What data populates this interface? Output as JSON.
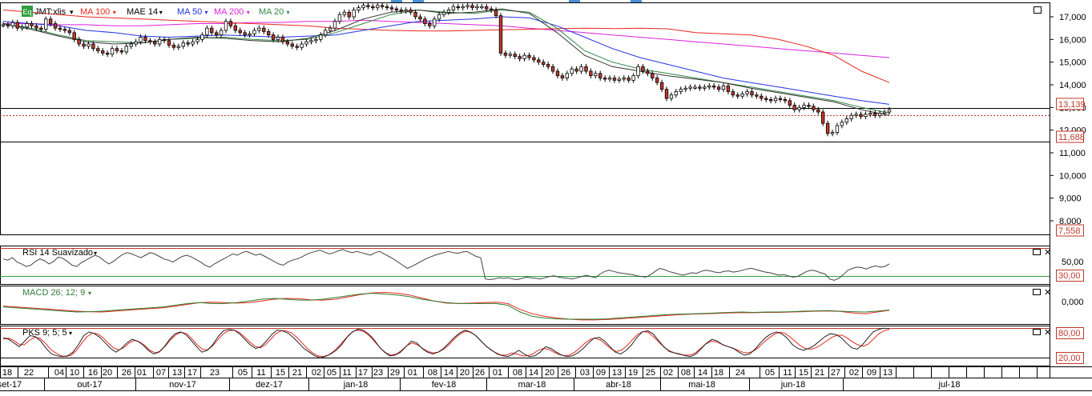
{
  "header": {
    "ticker_badge": "Eq",
    "ticker": "JMT:xlis",
    "indicators": [
      {
        "label": "MA 100",
        "color": "#e8281e"
      },
      {
        "label": "MAE 14",
        "color": "#000000"
      },
      {
        "label": "MA 50",
        "color": "#2233dd"
      },
      {
        "label": "MA 200",
        "color": "#dd22dd"
      },
      {
        "label": "MA 20",
        "color": "#338844"
      }
    ],
    "dropdown_glyph": "▾"
  },
  "price_axis": {
    "ticks": [
      "17,000",
      "16,000",
      "15,000",
      "14,000",
      "13,000",
      "12,000",
      "11,000",
      "10,000",
      "9,000",
      "8,000"
    ],
    "tick_values": [
      17000,
      16000,
      15000,
      14000,
      13000,
      12000,
      11000,
      10000,
      9000,
      8000
    ],
    "range": [
      7400,
      17600
    ],
    "badges": [
      {
        "text": "13,139",
        "value": 13139
      },
      {
        "text": "11,688",
        "value": 11688
      },
      {
        "text": "7,558",
        "value": 7558
      }
    ]
  },
  "rsi": {
    "label": "RSI 14 Suavizado",
    "ticks": [
      "50,00"
    ],
    "badge": "30,00",
    "color": "#444444"
  },
  "macd": {
    "label": "MACD 26; 12; 9",
    "ticks": [
      "0,000"
    ],
    "color_main": "#222222",
    "color_signal": "#e8281e"
  },
  "pks": {
    "label": "PKS 9; 5; 5",
    "badges": [
      "80,00",
      "20,00"
    ]
  },
  "time_axis": {
    "days": [
      "18",
      "22",
      "04",
      "10",
      "16",
      "20",
      "26",
      "01",
      "07",
      "13",
      "17",
      "23",
      "05",
      "11",
      "15",
      "21",
      "02",
      "05",
      "11",
      "17",
      "23",
      "29",
      "01",
      "08",
      "14",
      "20",
      "26",
      "01",
      "08",
      "14",
      "20",
      "26",
      "03",
      "09",
      "13",
      "19",
      "25",
      "02",
      "08",
      "14",
      "18",
      "24",
      "05",
      "11",
      "15",
      "21",
      "27",
      "02",
      "09",
      "13"
    ],
    "months": [
      "set-17",
      "out-17",
      "nov-17",
      "dez-17",
      "jan-18",
      "fev-18",
      "mar-18",
      "abr-18",
      "mai-18",
      "jun-18",
      "jul-18"
    ]
  },
  "chart_data": {
    "type": "candlestick",
    "ticker": "JMT:xlis",
    "y_range": [
      7400,
      17600
    ],
    "close": [
      16650,
      16600,
      16750,
      16500,
      16550,
      16700,
      16600,
      16500,
      16450,
      16900,
      16700,
      16500,
      16450,
      16400,
      16300,
      16000,
      15800,
      15700,
      15800,
      15600,
      15500,
      15400,
      15350,
      15600,
      15500,
      15450,
      15700,
      15800,
      15900,
      16100,
      15950,
      15900,
      15800,
      16000,
      15950,
      15750,
      15650,
      15700,
      15850,
      15800,
      15900,
      16000,
      16200,
      16500,
      16300,
      16200,
      16400,
      16800,
      16600,
      16400,
      16300,
      16200,
      16250,
      16400,
      16500,
      16350,
      16200,
      16000,
      16100,
      15900,
      15800,
      15700,
      15650,
      15800,
      15900,
      15950,
      16000,
      16200,
      16400,
      16500,
      16800,
      17100,
      17200,
      17000,
      17300,
      17400,
      17500,
      17450,
      17400,
      17500,
      17450,
      17400,
      17350,
      17300,
      17250,
      17300,
      17200,
      17000,
      16900,
      16700,
      16600,
      16900,
      17100,
      17200,
      17300,
      17450,
      17400,
      17450,
      17500,
      17400,
      17450,
      17450,
      17350,
      17300,
      17050,
      15400,
      15300,
      15350,
      15250,
      15150,
      15300,
      15200,
      15100,
      15000,
      14900,
      14800,
      14600,
      14400,
      14300,
      14500,
      14700,
      14600,
      14800,
      14600,
      14400,
      14500,
      14300,
      14250,
      14300,
      14200,
      14250,
      14300,
      14200,
      14400,
      14800,
      14600,
      14500,
      14300,
      14100,
      13800,
      13400,
      13550,
      13700,
      13800,
      13850,
      13900,
      13900,
      13850,
      13900,
      13950,
      13900,
      13800,
      13950,
      13700,
      13550,
      13500,
      13600,
      13700,
      13550,
      13500,
      13400,
      13350,
      13300,
      13400,
      13350,
      13300,
      13100,
      12900,
      13000,
      13100,
      13050,
      12900,
      12800,
      12300,
      11850,
      11900,
      12200,
      12350,
      12500,
      12650,
      12700,
      12600,
      12700,
      12750,
      12650,
      12750,
      12800,
      12900
    ],
    "ma100": [
      17300,
      17200,
      17100,
      17000,
      16950,
      16900,
      16850,
      16800,
      16750,
      16700,
      16650,
      16600,
      16500,
      16450,
      16400,
      16380,
      16370,
      16400,
      16430,
      16450,
      16480,
      16500,
      16480,
      16500,
      16470,
      16300,
      16250,
      16200,
      16000,
      15700,
      15300,
      14600,
      14100
    ],
    "ma200": [
      16700,
      16700,
      16650,
      16650,
      16600,
      16600,
      16650,
      16700,
      16700,
      16750,
      16750,
      16800,
      16800,
      16850,
      16800,
      16750,
      16700,
      16650,
      16600,
      16500,
      16400,
      16300,
      16200,
      16100,
      16000,
      15900,
      15800,
      15700,
      15600,
      15500,
      15400,
      15300,
      15200
    ],
    "ma50": [
      16800,
      16700,
      16600,
      16400,
      16300,
      16150,
      16100,
      16150,
      16200,
      16150,
      16100,
      16150,
      16200,
      16400,
      16600,
      16800,
      16850,
      16900,
      17000,
      16950,
      16600,
      16100,
      15600,
      15200,
      14900,
      14600,
      14300,
      14100,
      13900,
      13700,
      13500,
      13300,
      13139
    ],
    "ma20": [
      16700,
      16500,
      16200,
      15950,
      15900,
      15850,
      16000,
      16050,
      16100,
      16000,
      15950,
      16000,
      16300,
      16700,
      17100,
      17300,
      17200,
      17150,
      17300,
      17200,
      16500,
      15500,
      15000,
      14700,
      14500,
      14300,
      14100,
      13900,
      13700,
      13500,
      13300,
      13000,
      12750
    ],
    "mae14": [
      16700,
      16450,
      16150,
      15900,
      15800,
      15850,
      16000,
      16100,
      16050,
      15950,
      15900,
      16050,
      16400,
      16900,
      17200,
      17300,
      17150,
      17200,
      17350,
      17150,
      16300,
      15300,
      14800,
      14600,
      14400,
      14250,
      14100,
      13850,
      13650,
      13450,
      13250,
      12900,
      12650
    ],
    "rsi_range": [
      20,
      80
    ],
    "rsi": [
      60,
      58,
      62,
      55,
      52,
      48,
      50,
      56,
      60,
      57,
      52,
      56,
      63,
      61,
      56,
      50,
      48,
      54,
      58,
      62,
      66,
      63,
      57,
      52,
      56,
      62,
      67,
      70,
      68,
      65,
      62,
      66,
      70,
      68,
      64,
      60,
      58,
      55,
      60,
      64,
      66,
      63,
      59,
      55,
      50,
      47,
      52,
      56,
      60,
      64,
      68,
      66,
      70,
      72,
      69,
      66,
      68,
      64,
      60,
      56,
      52,
      50,
      55,
      58,
      60,
      63,
      67,
      70,
      72,
      74,
      71,
      68,
      70,
      73,
      75,
      72,
      70,
      72,
      70,
      68,
      66,
      70,
      72,
      68,
      64,
      60,
      55,
      50,
      45,
      48,
      52,
      56,
      60,
      63,
      66,
      68,
      70,
      72,
      70,
      69,
      71,
      72,
      68,
      64,
      62,
      28,
      27,
      28,
      30,
      29,
      30,
      28,
      27,
      29,
      31,
      30,
      29,
      28,
      30,
      32,
      33,
      31,
      30,
      29,
      28,
      30,
      32,
      34,
      32,
      30,
      36,
      40,
      42,
      40,
      38,
      37,
      36,
      35,
      33,
      32,
      31,
      35,
      40,
      45,
      43,
      40,
      38,
      36,
      34,
      36,
      38,
      37,
      40,
      42,
      41,
      39,
      38,
      40,
      41,
      39,
      40,
      42,
      44,
      45,
      43,
      41,
      39,
      38,
      36,
      34,
      35,
      33,
      31,
      32,
      36,
      40,
      42,
      41,
      38,
      36,
      28,
      26,
      29,
      35,
      42,
      45,
      47,
      46,
      44,
      47,
      49,
      47,
      48,
      52
    ],
    "macd_range": [
      -0.9,
      1.3
    ],
    "macd_main": [
      0.1,
      0.05,
      0.0,
      -0.05,
      -0.1,
      -0.15,
      -0.2,
      -0.18,
      -0.15,
      -0.1,
      -0.05,
      0.0,
      0.05,
      0.1,
      0.2,
      0.3,
      0.35,
      0.3,
      0.3,
      0.35,
      0.45,
      0.55,
      0.6,
      0.55,
      0.5,
      0.5,
      0.55,
      0.65,
      0.75,
      0.85,
      0.9,
      0.85,
      0.8,
      0.7,
      0.55,
      0.45,
      0.35,
      0.3,
      0.3,
      0.3,
      0.3,
      0.2,
      -0.2,
      -0.45,
      -0.55,
      -0.6,
      -0.62,
      -0.62,
      -0.62,
      -0.6,
      -0.55,
      -0.5,
      -0.45,
      -0.4,
      -0.35,
      -0.32,
      -0.3,
      -0.28,
      -0.25,
      -0.22,
      -0.2,
      -0.22,
      -0.2,
      -0.2,
      -0.18,
      -0.15,
      -0.13,
      -0.12,
      -0.15,
      -0.18,
      -0.2,
      -0.15,
      -0.08
    ],
    "macd_signal": [
      0.15,
      0.1,
      0.05,
      0.0,
      -0.05,
      -0.1,
      -0.15,
      -0.18,
      -0.2,
      -0.15,
      -0.1,
      -0.05,
      0.0,
      0.05,
      0.15,
      0.25,
      0.35,
      0.38,
      0.35,
      0.32,
      0.35,
      0.45,
      0.55,
      0.6,
      0.58,
      0.52,
      0.5,
      0.55,
      0.68,
      0.82,
      0.92,
      0.95,
      0.9,
      0.8,
      0.62,
      0.45,
      0.32,
      0.3,
      0.32,
      0.35,
      0.38,
      0.3,
      -0.05,
      -0.3,
      -0.45,
      -0.55,
      -0.62,
      -0.66,
      -0.66,
      -0.64,
      -0.6,
      -0.55,
      -0.5,
      -0.45,
      -0.4,
      -0.35,
      -0.32,
      -0.3,
      -0.28,
      -0.25,
      -0.23,
      -0.24,
      -0.22,
      -0.22,
      -0.2,
      -0.18,
      -0.15,
      -0.14,
      -0.16,
      -0.25,
      -0.3,
      -0.2,
      -0.1
    ],
    "pks_range": [
      0,
      100
    ],
    "pks_k": [
      70,
      65,
      55,
      45,
      60,
      75,
      72,
      60,
      40,
      25,
      20,
      18,
      20,
      30,
      50,
      75,
      85,
      80,
      70,
      55,
      40,
      30,
      40,
      55,
      65,
      60,
      50,
      35,
      25,
      30,
      45,
      65,
      80,
      85,
      78,
      62,
      45,
      30,
      35,
      50,
      72,
      88,
      92,
      90,
      80,
      65,
      50,
      40,
      45,
      60,
      78,
      90,
      88,
      82,
      70,
      55,
      40,
      30,
      20,
      15,
      18,
      25,
      35,
      50,
      70,
      85,
      92,
      90,
      80,
      65,
      45,
      30,
      20,
      22,
      30,
      45,
      60,
      55,
      40,
      30,
      25,
      30,
      40,
      55,
      70,
      82,
      90,
      85,
      75,
      60,
      45,
      35,
      25,
      20,
      18,
      25,
      35,
      25,
      18,
      20,
      30,
      45,
      40,
      30,
      22,
      18,
      20,
      28,
      40,
      55,
      68,
      70,
      60,
      45,
      30,
      25,
      35,
      50,
      70,
      85,
      88,
      80,
      62,
      45,
      32,
      28,
      25,
      20,
      18,
      25,
      40,
      55,
      65,
      60,
      50,
      45,
      40,
      30,
      22,
      25,
      38,
      55,
      70,
      80,
      85,
      80,
      68,
      50,
      40,
      35,
      40,
      48,
      60,
      72,
      80,
      78,
      70,
      55,
      42,
      38,
      50,
      68,
      85,
      92,
      95,
      94
    ],
    "pks_d": [
      65,
      68,
      62,
      52,
      50,
      62,
      70,
      68,
      55,
      38,
      28,
      20,
      18,
      22,
      35,
      55,
      72,
      82,
      80,
      70,
      55,
      42,
      36,
      42,
      55,
      62,
      58,
      48,
      35,
      28,
      33,
      48,
      65,
      78,
      84,
      80,
      66,
      50,
      38,
      36,
      48,
      65,
      80,
      88,
      90,
      84,
      72,
      58,
      46,
      42,
      50,
      65,
      80,
      88,
      88,
      82,
      70,
      55,
      40,
      28,
      20,
      18,
      22,
      32,
      46,
      62,
      78,
      88,
      90,
      84,
      72,
      56,
      40,
      28,
      22,
      25,
      35,
      48,
      55,
      50,
      40,
      32,
      28,
      30,
      38,
      50,
      65,
      78,
      86,
      85,
      76,
      62,
      48,
      36,
      28,
      22,
      22,
      28,
      25,
      20,
      20,
      25,
      35,
      40,
      38,
      30,
      24,
      20,
      22,
      30,
      42,
      55,
      65,
      68,
      62,
      50,
      38,
      32,
      36,
      48,
      64,
      78,
      86,
      84,
      72,
      58,
      44,
      34,
      28,
      24,
      22,
      22,
      28,
      40,
      52,
      60,
      58,
      52,
      46,
      42,
      36,
      30,
      28,
      32,
      42,
      56,
      68,
      78,
      84,
      82,
      72,
      60,
      48,
      40,
      38,
      42,
      50,
      60,
      70,
      76,
      76,
      68,
      58,
      50,
      46,
      52,
      66,
      80,
      88,
      92
    ]
  }
}
